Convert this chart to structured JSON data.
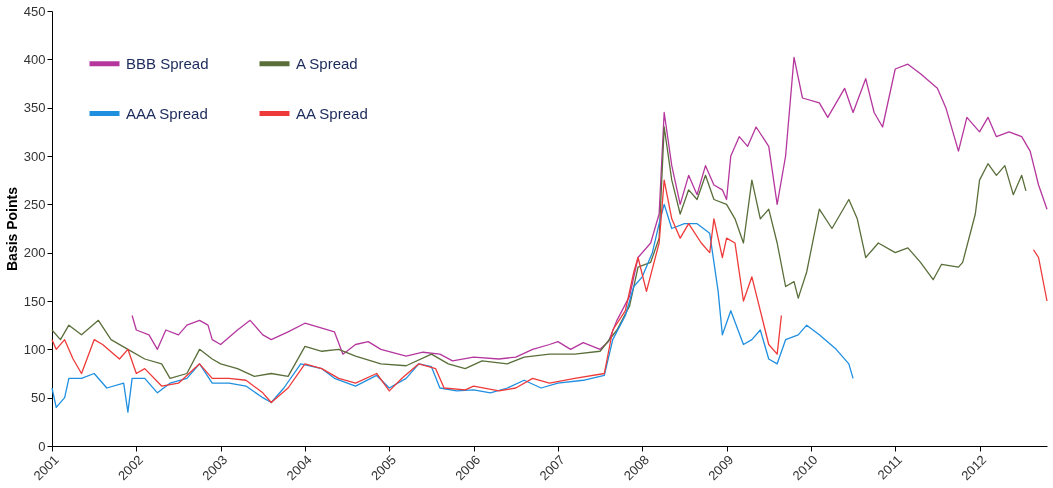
{
  "chart_data": {
    "type": "line",
    "ylabel": "Basis Points",
    "xlim": [
      2001,
      2012.8
    ],
    "xticks": [
      2001,
      2002,
      2003,
      2004,
      2005,
      2006,
      2007,
      2008,
      2009,
      2010,
      2011,
      2012
    ],
    "ylim": [
      0,
      450
    ],
    "yticks": [
      0,
      50,
      100,
      150,
      200,
      250,
      300,
      350,
      400,
      450
    ],
    "grid": false,
    "legend": "top left",
    "marker": "none",
    "line_style": "solid",
    "series": [
      {
        "name": "BBB Spread",
        "color": "#b5379e",
        "x": [
          2001.95,
          2002.0,
          2002.15,
          2002.25,
          2002.35,
          2002.5,
          2002.6,
          2002.75,
          2002.85,
          2002.9,
          2003.0,
          2003.2,
          2003.35,
          2003.5,
          2003.6,
          2003.8,
          2004.0,
          2004.2,
          2004.35,
          2004.45,
          2004.6,
          2004.75,
          2004.9,
          2005.2,
          2005.4,
          2005.6,
          2005.75,
          2006.0,
          2006.3,
          2006.5,
          2006.7,
          2006.9,
          2007.0,
          2007.15,
          2007.3,
          2007.5,
          2007.6,
          2007.7,
          2007.85,
          2007.95,
          2008.1,
          2008.2,
          2008.26,
          2008.35,
          2008.45,
          2008.55,
          2008.65,
          2008.75,
          2008.85,
          2008.95,
          2009.0,
          2009.05,
          2009.15,
          2009.25,
          2009.35,
          2009.5,
          2009.6,
          2009.7,
          2009.8,
          2009.9,
          2010.1,
          2010.2,
          2010.4,
          2010.5,
          2010.65,
          2010.75,
          2010.85,
          2011.0,
          2011.15,
          2011.3,
          2011.5,
          2011.6,
          2011.75,
          2011.85,
          2012.0,
          2012.1,
          2012.2,
          2012.35,
          2012.5,
          2012.6,
          2012.7,
          2012.8
        ],
        "values": [
          135,
          120,
          115,
          100,
          120,
          115,
          125,
          130,
          125,
          110,
          105,
          120,
          130,
          115,
          110,
          118,
          127,
          122,
          118,
          95,
          105,
          108,
          100,
          93,
          97,
          95,
          88,
          92,
          90,
          92,
          100,
          105,
          108,
          100,
          107,
          100,
          108,
          130,
          155,
          195,
          210,
          240,
          345,
          290,
          250,
          280,
          260,
          290,
          270,
          265,
          255,
          300,
          320,
          310,
          330,
          310,
          250,
          300,
          402,
          360,
          355,
          340,
          370,
          345,
          380,
          345,
          330,
          390,
          395,
          385,
          370,
          350,
          305,
          340,
          325,
          340,
          320,
          325,
          320,
          305,
          270,
          245
        ]
      },
      {
        "name": "A Spread",
        "color": "#5a6e3a",
        "x": [
          2001.0,
          2001.1,
          2001.2,
          2001.35,
          2001.55,
          2001.7,
          2001.9,
          2002.1,
          2002.3,
          2002.4,
          2002.6,
          2002.75,
          2002.9,
          2003.0,
          2003.2,
          2003.4,
          2003.6,
          2003.8,
          2004.0,
          2004.2,
          2004.4,
          2004.6,
          2004.9,
          2005.2,
          2005.5,
          2005.7,
          2005.9,
          2006.1,
          2006.4,
          2006.6,
          2006.9,
          2007.2,
          2007.5,
          2007.7,
          2007.85,
          2007.95,
          2008.1,
          2008.2,
          2008.26,
          2008.35,
          2008.45,
          2008.55,
          2008.65,
          2008.75,
          2008.85,
          2009.0,
          2009.1,
          2009.2,
          2009.3,
          2009.4,
          2009.5,
          2009.6,
          2009.7,
          2009.8,
          2009.85,
          2009.95,
          2010.1,
          2010.25,
          2010.35,
          2010.45,
          2010.55,
          2010.65,
          2010.8,
          2011.0,
          2011.15,
          2011.3,
          2011.45,
          2011.55,
          2011.75,
          2011.8,
          2011.95,
          2012.0,
          2012.1,
          2012.2,
          2012.3,
          2012.4,
          2012.5,
          2012.55
        ],
        "values": [
          120,
          110,
          125,
          115,
          130,
          110,
          100,
          90,
          85,
          70,
          75,
          100,
          90,
          85,
          80,
          72,
          75,
          72,
          103,
          98,
          100,
          93,
          85,
          83,
          95,
          85,
          80,
          88,
          85,
          92,
          95,
          95,
          98,
          120,
          145,
          185,
          190,
          215,
          330,
          275,
          240,
          265,
          255,
          280,
          255,
          250,
          235,
          210,
          275,
          235,
          245,
          210,
          165,
          170,
          153,
          180,
          245,
          225,
          240,
          255,
          235,
          195,
          210,
          200,
          205,
          190,
          172,
          188,
          185,
          190,
          240,
          275,
          292,
          280,
          290,
          260,
          280,
          264
        ]
      },
      {
        "name": "AAA Spread",
        "color": "#1f8fe0",
        "x": [
          2001.0,
          2001.05,
          2001.15,
          2001.2,
          2001.35,
          2001.5,
          2001.65,
          2001.85,
          2001.9,
          2001.95,
          2002.1,
          2002.25,
          2002.4,
          2002.6,
          2002.75,
          2002.9,
          2003.1,
          2003.3,
          2003.5,
          2003.6,
          2003.75,
          2003.95,
          2004.2,
          2004.35,
          2004.6,
          2004.85,
          2005.0,
          2005.2,
          2005.35,
          2005.5,
          2005.6,
          2005.8,
          2006.0,
          2006.2,
          2006.4,
          2006.6,
          2006.8,
          2007.0,
          2007.3,
          2007.55,
          2007.65,
          2007.8,
          2007.9,
          2008.0,
          2008.12,
          2008.2,
          2008.26,
          2008.35,
          2008.5,
          2008.65,
          2008.8,
          2008.9,
          2008.95,
          2009.05,
          2009.2,
          2009.3,
          2009.4,
          2009.5,
          2009.6,
          2009.7,
          2009.85,
          2009.95,
          2010.1,
          2010.3,
          2010.45,
          2010.5
        ],
        "values": [
          60,
          40,
          50,
          70,
          70,
          75,
          60,
          65,
          35,
          70,
          70,
          55,
          65,
          70,
          85,
          65,
          65,
          62,
          50,
          45,
          60,
          85,
          80,
          70,
          62,
          73,
          60,
          70,
          85,
          82,
          60,
          57,
          58,
          55,
          60,
          68,
          60,
          65,
          68,
          73,
          110,
          135,
          165,
          175,
          200,
          230,
          250,
          225,
          230,
          230,
          220,
          160,
          115,
          140,
          105,
          110,
          120,
          90,
          85,
          110,
          115,
          125,
          115,
          100,
          85,
          70
        ]
      },
      {
        "name": "AA Spread",
        "color": "#ee3a3a",
        "x": [
          2001.0,
          2001.05,
          2001.15,
          2001.25,
          2001.35,
          2001.5,
          2001.6,
          2001.8,
          2001.9,
          2002.0,
          2002.1,
          2002.3,
          2002.5,
          2002.75,
          2002.9,
          2003.1,
          2003.3,
          2003.5,
          2003.6,
          2003.8,
          2004.0,
          2004.2,
          2004.4,
          2004.6,
          2004.85,
          2005.0,
          2005.15,
          2005.35,
          2005.55,
          2005.65,
          2005.9,
          2006.0,
          2006.3,
          2006.5,
          2006.7,
          2006.9,
          2007.2,
          2007.55,
          2007.65,
          2007.8,
          2007.9,
          2007.95,
          2008.05,
          2008.2,
          2008.26,
          2008.35,
          2008.45,
          2008.55,
          2008.7,
          2008.8,
          2008.85,
          2008.95,
          2009.0,
          2009.1,
          2009.2,
          2009.3,
          2009.4,
          2009.5,
          2009.6,
          2009.65,
          2011.0,
          2012.64,
          2012.7,
          2012.8
        ],
        "values": [
          110,
          100,
          110,
          90,
          75,
          110,
          105,
          90,
          100,
          75,
          80,
          62,
          65,
          85,
          70,
          70,
          68,
          55,
          45,
          60,
          85,
          80,
          70,
          65,
          75,
          57,
          70,
          85,
          80,
          60,
          58,
          62,
          57,
          60,
          70,
          65,
          70,
          75,
          120,
          140,
          180,
          195,
          160,
          210,
          275,
          235,
          215,
          230,
          210,
          200,
          235,
          195,
          215,
          210,
          150,
          175,
          140,
          105,
          95,
          135,
          null,
          203,
          195,
          150
        ]
      }
    ]
  }
}
